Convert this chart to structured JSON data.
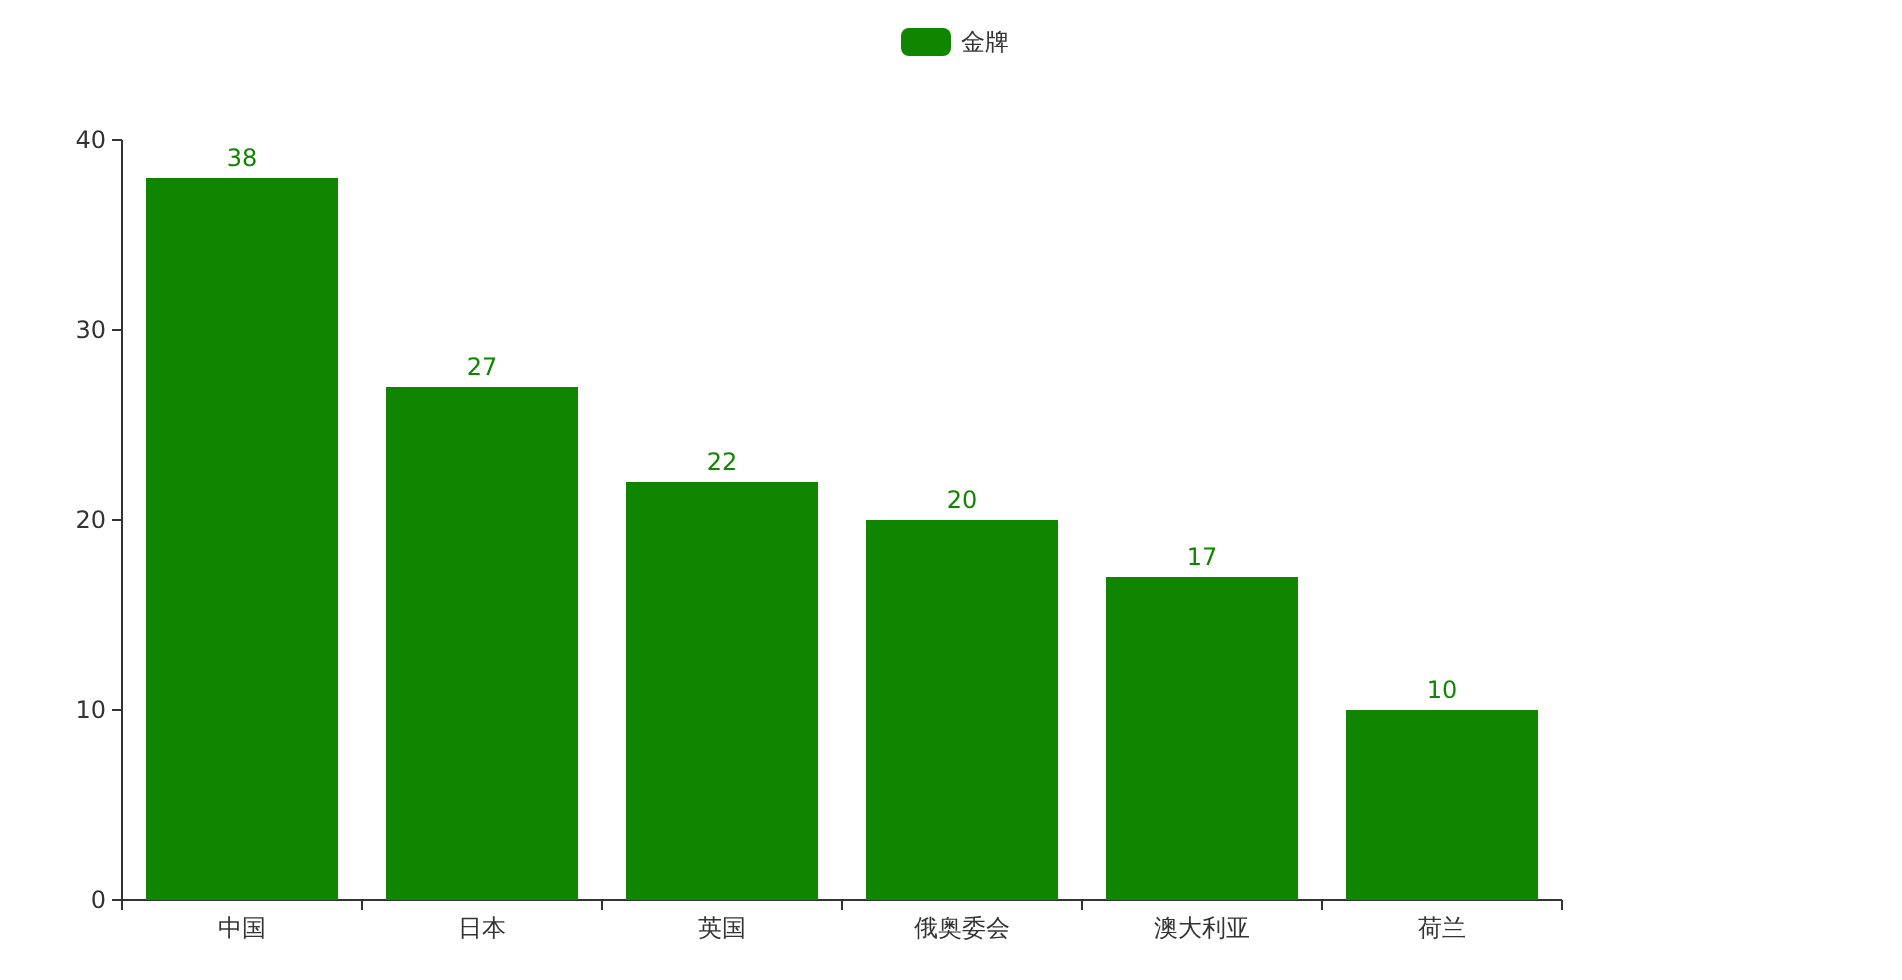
{
  "chart_data": {
    "type": "bar",
    "categories": [
      "中国",
      "日本",
      "英国",
      "俄奥委会",
      "澳大利亚",
      "荷兰"
    ],
    "series": [
      {
        "name": "金牌",
        "color": "#108500",
        "values": [
          38,
          27,
          22,
          20,
          17,
          10
        ]
      }
    ],
    "ylim": [
      0,
      40
    ],
    "yticks": [
      0,
      10,
      20,
      30,
      40
    ],
    "data_labels": true,
    "legend": "top",
    "grid": false
  }
}
